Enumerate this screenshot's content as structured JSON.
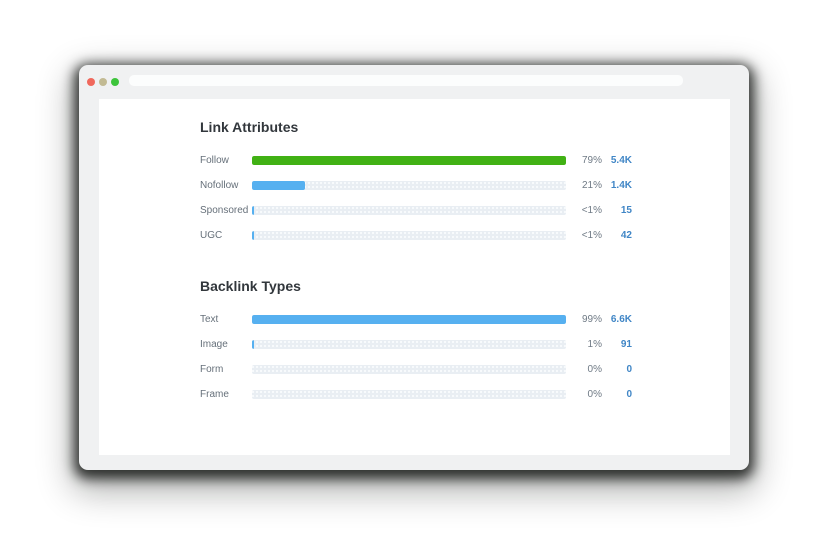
{
  "window": {
    "traffic_lights": [
      {
        "name": "close",
        "color": "#f0685c"
      },
      {
        "name": "minimize",
        "color": "#c2ba93"
      },
      {
        "name": "zoom",
        "color": "#3dc43b"
      }
    ],
    "url_bar_value": ""
  },
  "chart_data": [
    {
      "type": "bar",
      "orientation": "horizontal",
      "title": "Link Attributes",
      "categories": [
        "Follow",
        "Nofollow",
        "Sponsored",
        "UGC"
      ],
      "percent_labels": [
        "79%",
        "21%",
        "<1%",
        "<1%"
      ],
      "value_labels": [
        "5.4K",
        "1.4K",
        "15",
        "42"
      ],
      "values_numeric": [
        5400,
        1400,
        15,
        42
      ],
      "bar_fill_pct": [
        100,
        17,
        0.6,
        0.6
      ],
      "bar_colors": [
        "#41b114",
        "#56b0f0",
        "#56b0f0",
        "#56b0f0"
      ],
      "xlim": [
        0,
        100
      ],
      "grid": false,
      "legend": false
    },
    {
      "type": "bar",
      "orientation": "horizontal",
      "title": "Backlink Types",
      "categories": [
        "Text",
        "Image",
        "Form",
        "Frame"
      ],
      "percent_labels": [
        "99%",
        "1%",
        "0%",
        "0%"
      ],
      "value_labels": [
        "6.6K",
        "91",
        "0",
        "0"
      ],
      "values_numeric": [
        6600,
        91,
        0,
        0
      ],
      "bar_fill_pct": [
        100,
        0.6,
        0,
        0
      ],
      "bar_colors": [
        "#56b0f0",
        "#56b0f0",
        "#56b0f0",
        "#56b0f0"
      ],
      "xlim": [
        0,
        100
      ],
      "grid": false,
      "legend": false
    }
  ],
  "colors": {
    "green_bar": "#41b114",
    "blue_bar": "#56b0f0",
    "track": "#e9eef3",
    "value_link": "#4086c6",
    "percent_text": "#6f7a85",
    "label_text": "#66707a",
    "title_text": "#32373c",
    "window_frame": "#f0f1f2",
    "content_bg": "#ffffff"
  }
}
